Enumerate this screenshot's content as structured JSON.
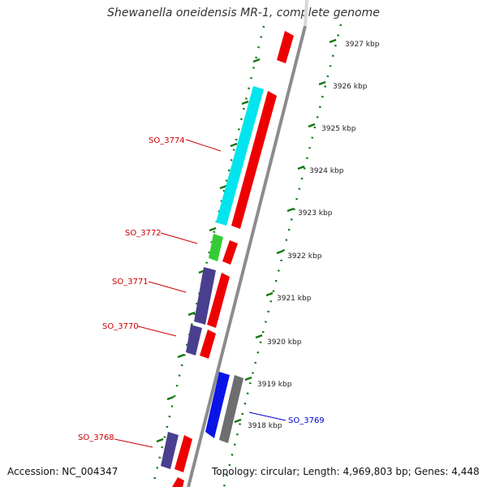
{
  "title": "Shewanella oneidensis MR-1, complete genome",
  "footer": {
    "accession": "Accession: NC_004347",
    "topology": "Topology: circular; Length: 4,969,803 bp; Genes: 4,448"
  },
  "kbp_ticks": [
    "3927 kbp",
    "3926 kbp",
    "3925 kbp",
    "3924 kbp",
    "3923 kbp",
    "3922 kbp",
    "3921 kbp",
    "3920 kbp",
    "3919 kbp",
    "3918 kbp"
  ],
  "gene_labels": [
    {
      "text": "SO_3774",
      "color": "#cc0000"
    },
    {
      "text": "SO_3772",
      "color": "#cc0000"
    },
    {
      "text": "SO_3771",
      "color": "#cc0000"
    },
    {
      "text": "SO_3770",
      "color": "#cc0000"
    },
    {
      "text": "SO_3769",
      "color": "#0000cc"
    },
    {
      "text": "SO_3768",
      "color": "#cc0000"
    }
  ],
  "colors": {
    "cds": "#ee0000",
    "cyan": "#00e5ee",
    "green": "#33cc33",
    "purple": "#4a3f8f",
    "blue": "#0a14e6",
    "gray": "#6e6e6e",
    "backbone": "#8c8c8c",
    "tick": "#117711"
  }
}
